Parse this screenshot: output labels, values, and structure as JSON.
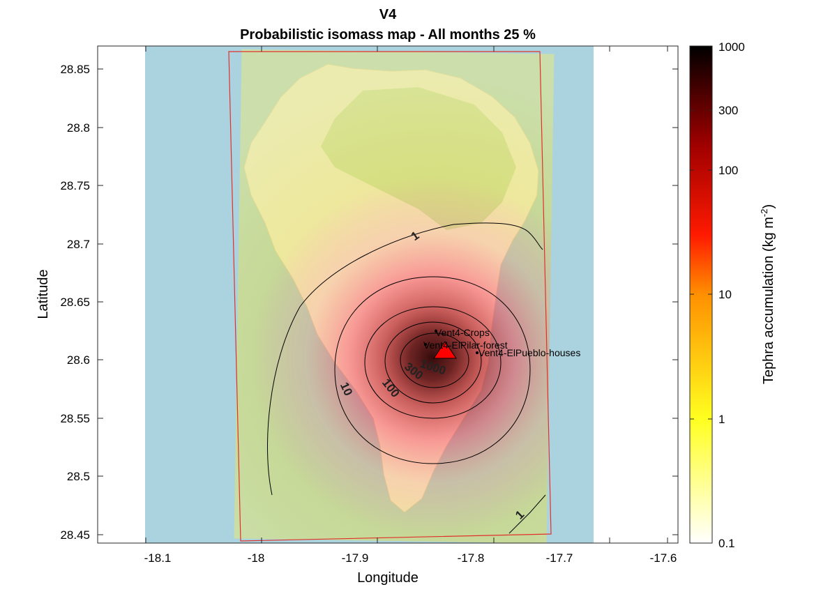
{
  "figure": {
    "title_line1": "V4",
    "title_line2": "Probabilistic isomass map - All months 25 %"
  },
  "axes": {
    "xlabel": "Longitude",
    "ylabel": "Latitude",
    "xticks": [
      "-18.1",
      "-18",
      "-17.9",
      "-17.8",
      "-17.7",
      "-17.6"
    ],
    "yticks": [
      "28.85",
      "28.8",
      "28.75",
      "28.7",
      "28.65",
      "28.6",
      "28.55",
      "28.5",
      "28.45"
    ]
  },
  "colorbar": {
    "label": "Tephra accumulation (kg m",
    "label_exponent": "-2",
    "label_close": ")",
    "ticks": [
      "1000",
      "300",
      "100",
      "10",
      "1",
      "0.1"
    ],
    "scale": "log",
    "range": [
      0.1,
      1000
    ],
    "colormap": "hot-reversed"
  },
  "contours": {
    "labels": [
      "1",
      "1",
      "10",
      "100",
      "300",
      "1000"
    ],
    "levels": [
      1,
      10,
      100,
      300,
      1000
    ]
  },
  "vent": {
    "marker": "red-triangle",
    "lon": -17.81,
    "lat": 28.61
  },
  "points": [
    {
      "label": "Vent4-Crops",
      "lon": -17.825,
      "lat": 28.625
    },
    {
      "label": "Vent4-ElPilar-forest",
      "lon": -17.838,
      "lat": 28.612
    },
    {
      "label": "Vent4-ElPueblo-houses",
      "lon": -17.775,
      "lat": 28.605
    }
  ],
  "colors": {
    "sea": "#aad3df",
    "land": "#f2efe9",
    "domain_outline": "#e0302a",
    "contour": "#000000",
    "vent_fill": "#ff0000"
  }
}
